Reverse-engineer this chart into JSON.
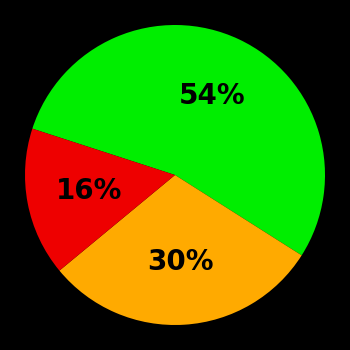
{
  "slices": [
    54,
    30,
    16
  ],
  "colors": [
    "#00ee00",
    "#ffaa00",
    "#ee0000"
  ],
  "labels": [
    "54%",
    "30%",
    "16%"
  ],
  "background_color": "#000000",
  "text_color": "#000000",
  "font_size": 20,
  "font_weight": "bold",
  "startangle": 162,
  "figsize": [
    3.5,
    3.5
  ],
  "dpi": 100
}
